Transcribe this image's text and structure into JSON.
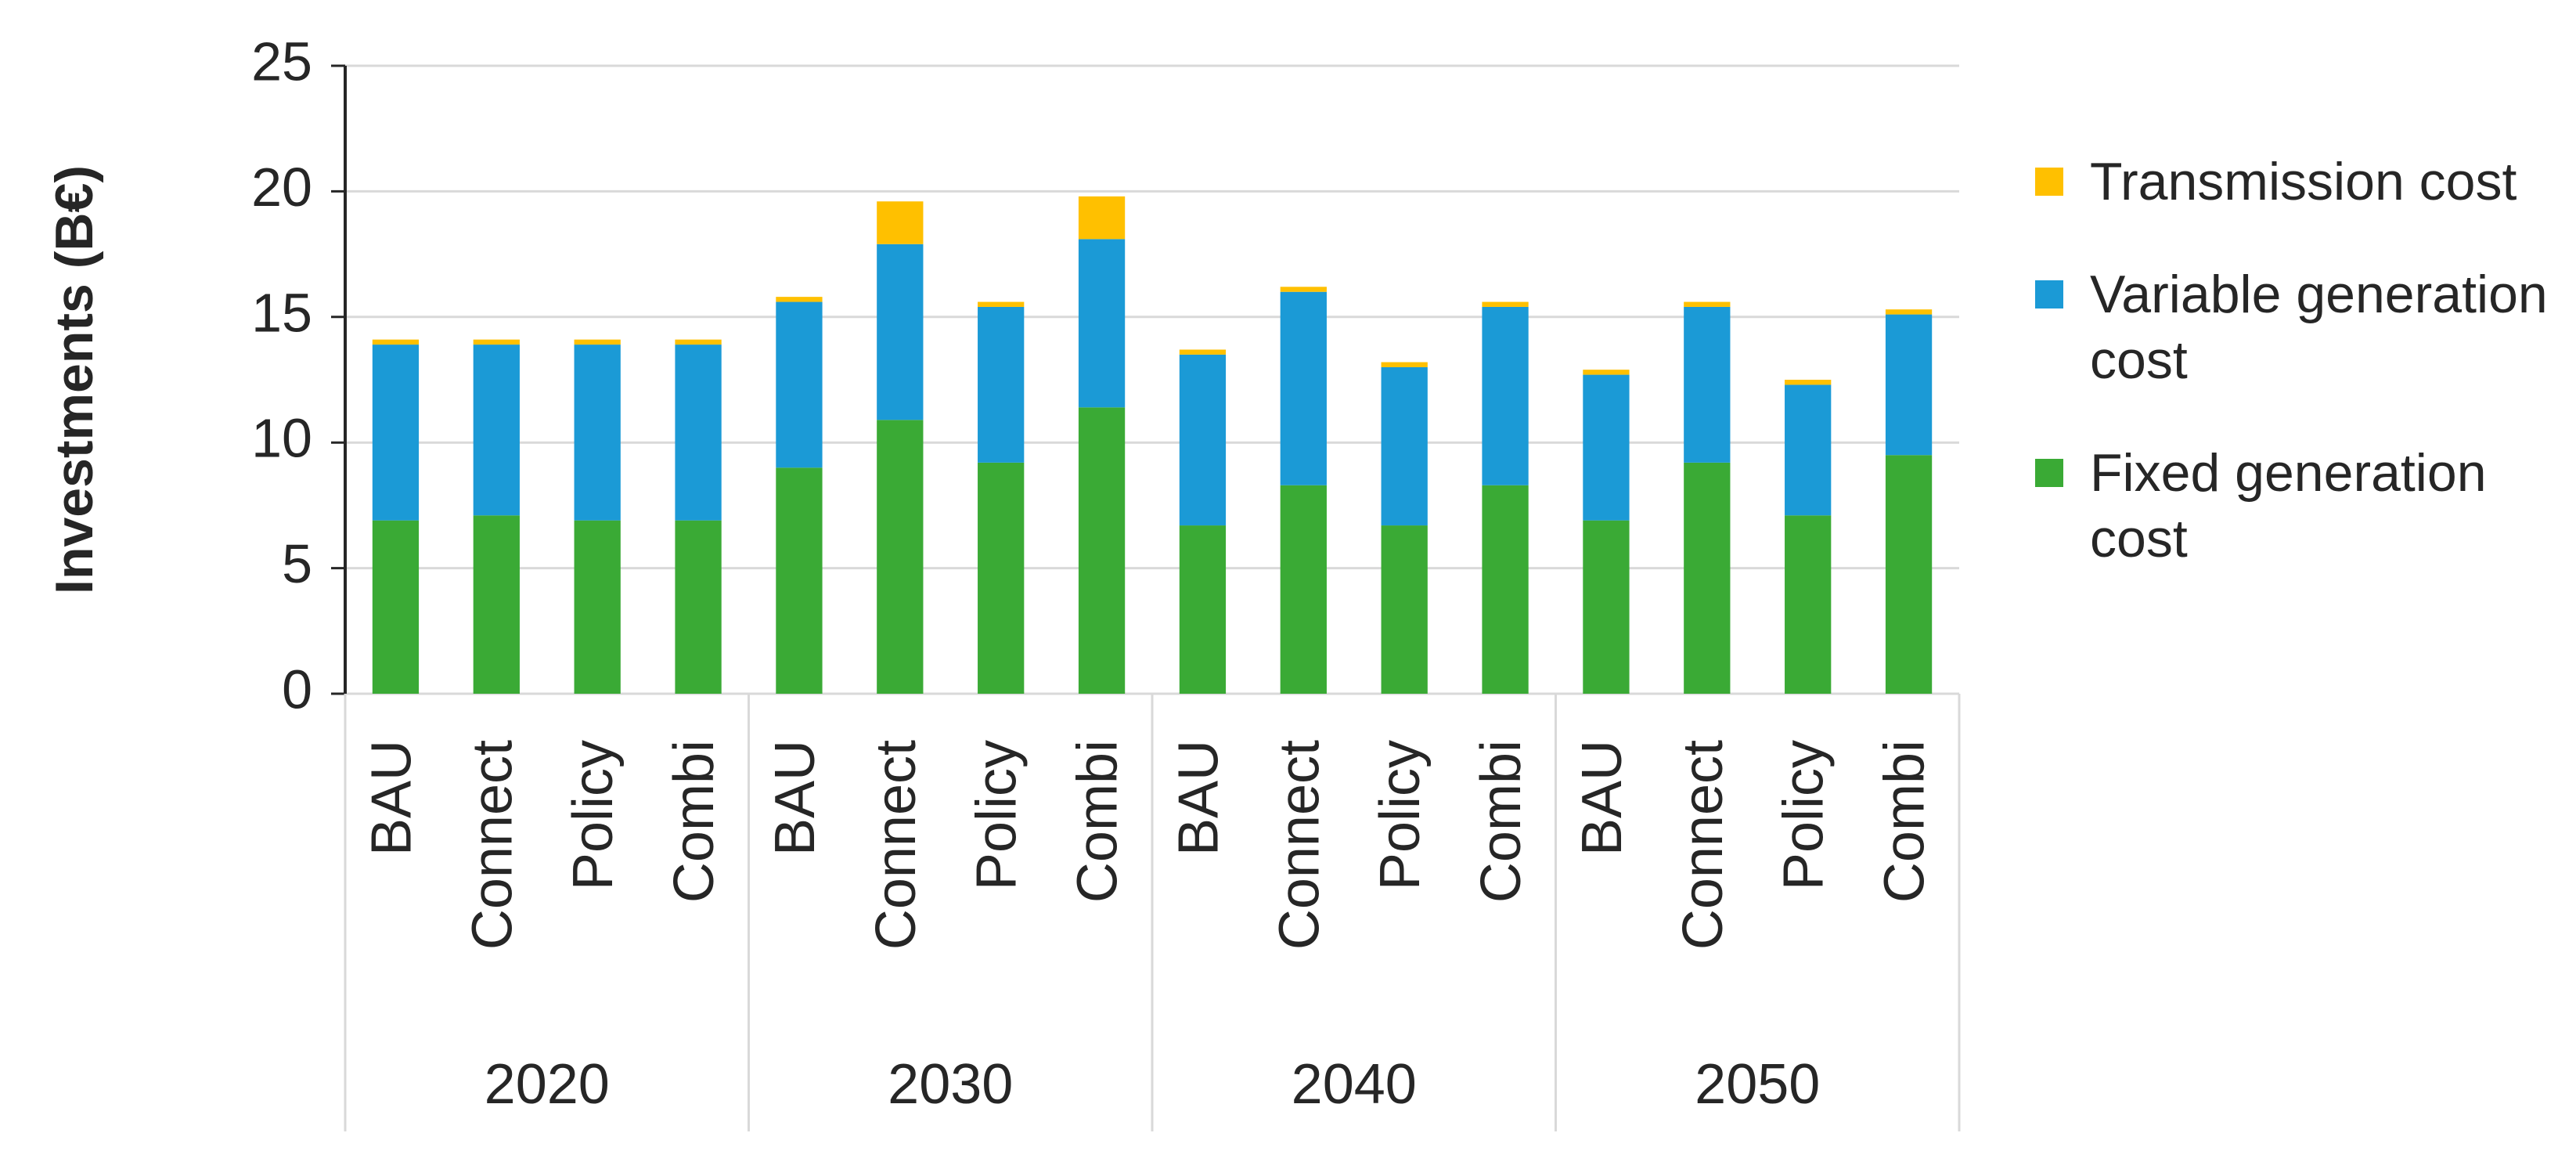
{
  "chart_data": {
    "type": "stacked-bar",
    "y_label": "Investments (B€)",
    "groups": [
      "2020",
      "2030",
      "2040",
      "2050"
    ],
    "categories": [
      "BAU",
      "Connect",
      "Policy",
      "Combi",
      "BAU",
      "Connect",
      "Policy",
      "Combi",
      "BAU",
      "Connect",
      "Policy",
      "Combi",
      "BAU",
      "Connect",
      "Policy",
      "Combi"
    ],
    "series": [
      {
        "name": "Fixed generation cost",
        "color": "#3aaa35",
        "values": [
          6.9,
          7.1,
          6.9,
          6.9,
          9.0,
          10.9,
          9.2,
          11.4,
          6.7,
          8.3,
          6.7,
          8.3,
          6.9,
          9.2,
          7.1,
          9.5
        ]
      },
      {
        "name": "Variable generation cost",
        "color": "#1b9ad6",
        "values": [
          7.0,
          6.8,
          7.0,
          7.0,
          6.6,
          7.0,
          6.2,
          6.7,
          6.8,
          7.7,
          6.3,
          7.1,
          5.8,
          6.2,
          5.2,
          5.6
        ]
      },
      {
        "name": "Transmission cost",
        "color": "#ffc000",
        "values": [
          0.2,
          0.2,
          0.2,
          0.2,
          0.2,
          1.7,
          0.2,
          1.7,
          0.2,
          0.2,
          0.2,
          0.2,
          0.2,
          0.2,
          0.2,
          0.2
        ]
      }
    ],
    "ylim": [
      0,
      25
    ],
    "yticks": [
      0,
      5,
      10,
      15,
      20,
      25
    ],
    "grid": true,
    "legend": "right"
  }
}
